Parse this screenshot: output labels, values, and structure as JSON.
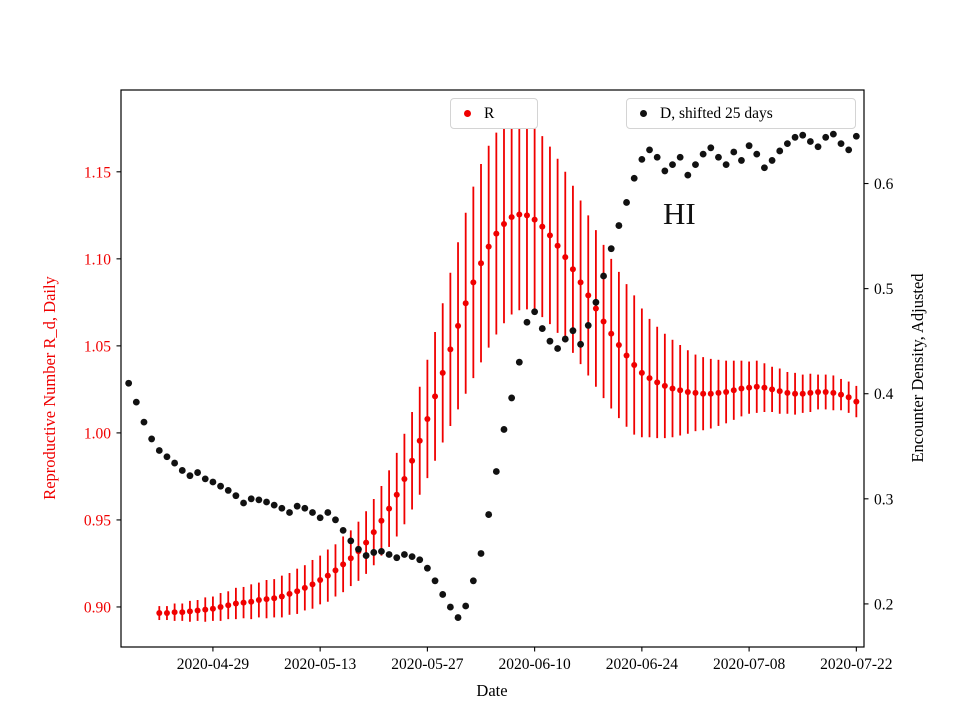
{
  "chart_data": {
    "type": "scatter",
    "title": "",
    "xlabel": "Date",
    "ylabel_left": "Reproductive Number R_d, Daily",
    "ylabel_right": "Encounter Density, Adjusted",
    "annotation": {
      "text": "HI"
    },
    "legend_position": "top",
    "grid": false,
    "x_ticks": [
      "2020-04-29",
      "2020-05-13",
      "2020-05-27",
      "2020-06-10",
      "2020-06-24",
      "2020-07-08",
      "2020-07-22"
    ],
    "y_ticks_left": [
      "0.90",
      "0.95",
      "1.00",
      "1.05",
      "1.10",
      "1.15"
    ],
    "y_ticks_right": [
      "0.2",
      "0.3",
      "0.4",
      "0.5",
      "0.6"
    ],
    "xlim": [
      "2020-04-17",
      "2020-07-23"
    ],
    "ylim_left": [
      0.877,
      1.197
    ],
    "ylim_right": [
      0.159,
      0.689
    ],
    "series": [
      {
        "name": "R",
        "axis": "left",
        "color": "#f00000",
        "marker": "circle",
        "has_error_bars": true,
        "start_date": "2020-04-22",
        "values": [
          0.8965,
          0.8965,
          0.897,
          0.897,
          0.8975,
          0.898,
          0.8985,
          0.899,
          0.9,
          0.901,
          0.902,
          0.9025,
          0.903,
          0.904,
          0.9045,
          0.905,
          0.906,
          0.9075,
          0.909,
          0.911,
          0.913,
          0.9155,
          0.918,
          0.921,
          0.9245,
          0.928,
          0.932,
          0.937,
          0.943,
          0.9495,
          0.9565,
          0.9645,
          0.9735,
          0.984,
          0.9955,
          1.008,
          1.021,
          1.0345,
          1.048,
          1.0615,
          1.0745,
          1.0865,
          1.0975,
          1.107,
          1.1145,
          1.12,
          1.124,
          1.1255,
          1.125,
          1.1225,
          1.1185,
          1.1135,
          1.1075,
          1.101,
          1.094,
          1.0865,
          1.079,
          1.0715,
          1.064,
          1.057,
          1.0505,
          1.0445,
          1.039,
          1.0345,
          1.0315,
          1.029,
          1.027,
          1.0255,
          1.0245,
          1.0235,
          1.023,
          1.0225,
          1.0225,
          1.023,
          1.0235,
          1.0245,
          1.0255,
          1.026,
          1.0265,
          1.026,
          1.025,
          1.024,
          1.023,
          1.0225,
          1.0225,
          1.023,
          1.0235,
          1.0235,
          1.023,
          1.022,
          1.0205,
          1.018
        ],
        "errors": [
          0.004,
          0.004,
          0.005,
          0.005,
          0.006,
          0.006,
          0.007,
          0.007,
          0.008,
          0.008,
          0.009,
          0.009,
          0.01,
          0.01,
          0.011,
          0.011,
          0.012,
          0.012,
          0.013,
          0.013,
          0.014,
          0.014,
          0.015,
          0.015,
          0.016,
          0.016,
          0.017,
          0.018,
          0.019,
          0.02,
          0.022,
          0.024,
          0.026,
          0.028,
          0.031,
          0.034,
          0.037,
          0.04,
          0.044,
          0.048,
          0.052,
          0.055,
          0.057,
          0.058,
          0.058,
          0.057,
          0.056,
          0.055,
          0.054,
          0.053,
          0.052,
          0.051,
          0.05,
          0.049,
          0.048,
          0.047,
          0.046,
          0.045,
          0.044,
          0.043,
          0.042,
          0.041,
          0.04,
          0.037,
          0.034,
          0.032,
          0.03,
          0.028,
          0.026,
          0.024,
          0.022,
          0.021,
          0.02,
          0.019,
          0.018,
          0.017,
          0.016,
          0.015,
          0.015,
          0.014,
          0.013,
          0.013,
          0.012,
          0.012,
          0.011,
          0.011,
          0.01,
          0.01,
          0.01,
          0.009,
          0.009,
          0.009
        ]
      },
      {
        "name": "D, shifted 25 days",
        "axis": "right",
        "color": "#111111",
        "marker": "circle",
        "has_error_bars": false,
        "start_date": "2020-04-18",
        "values": [
          0.41,
          0.392,
          0.373,
          0.357,
          0.346,
          0.34,
          0.334,
          0.327,
          0.322,
          0.325,
          0.319,
          0.316,
          0.312,
          0.308,
          0.303,
          0.296,
          0.3,
          0.299,
          0.297,
          0.294,
          0.291,
          0.287,
          0.293,
          0.291,
          0.287,
          0.282,
          0.287,
          0.28,
          0.27,
          0.26,
          0.252,
          0.246,
          0.249,
          0.25,
          0.247,
          0.244,
          0.247,
          0.245,
          0.242,
          0.234,
          0.222,
          0.209,
          0.197,
          0.187,
          0.198,
          0.222,
          0.248,
          0.285,
          0.326,
          0.366,
          0.396,
          0.43,
          0.468,
          0.478,
          0.462,
          0.45,
          0.443,
          0.452,
          0.46,
          0.447,
          0.465,
          0.487,
          0.512,
          0.538,
          0.56,
          0.582,
          0.605,
          0.623,
          0.632,
          0.625,
          0.612,
          0.618,
          0.625,
          0.608,
          0.618,
          0.628,
          0.634,
          0.625,
          0.618,
          0.63,
          0.622,
          0.636,
          0.628,
          0.615,
          0.622,
          0.631,
          0.638,
          0.644,
          0.646,
          0.64,
          0.635,
          0.644,
          0.647,
          0.638,
          0.632,
          0.645
        ]
      }
    ]
  }
}
